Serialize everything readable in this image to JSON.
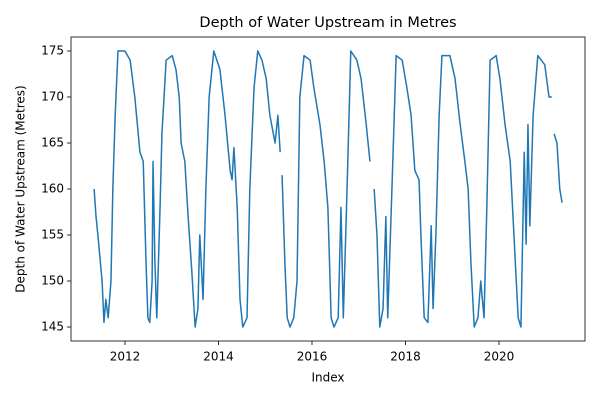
{
  "chart_data": {
    "type": "line",
    "title": "Depth of Water Upstream in Metres",
    "x_label": "Index",
    "y_label": "Depth of Water Upstream (Metres)",
    "color": "#1f77b4",
    "grid": false,
    "xlim": [
      2010.845,
      2021.84
    ],
    "ylim": [
      143.48,
      176.52
    ],
    "xticks": [
      2012,
      2014,
      2016,
      2018,
      2020
    ],
    "yticks": [
      145,
      150,
      155,
      160,
      165,
      170,
      175
    ],
    "x": [
      2011.34,
      2011.38,
      2011.42,
      2011.51,
      2011.55,
      2011.59,
      2011.64,
      2011.7,
      2011.74,
      2011.79,
      2011.85,
      2012.0,
      2012.11,
      2012.21,
      2012.32,
      2012.39,
      2012.45,
      2012.49,
      2012.53,
      2012.58,
      2012.6,
      2012.64,
      2012.68,
      2012.75,
      2012.79,
      2012.88,
      2013.01,
      2013.09,
      2013.16,
      2013.2,
      2013.28,
      2013.35,
      2013.43,
      2013.5,
      2013.56,
      2013.6,
      2013.67,
      2013.73,
      2013.8,
      2013.9,
      2014.03,
      2014.14,
      2014.25,
      2014.29,
      2014.33,
      2014.4,
      2014.46,
      2014.52,
      2014.61,
      2014.67,
      2014.76,
      2014.84,
      2014.93,
      2015.02,
      2015.1,
      2015.21,
      2015.27,
      2015.32,
      2015.34,
      2015.36,
      2015.42,
      2015.47,
      2015.53,
      2015.61,
      2015.68,
      2015.74,
      2015.83,
      2015.96,
      2016.04,
      2016.17,
      2016.26,
      2016.34,
      2016.41,
      2016.47,
      2016.56,
      2016.62,
      2016.67,
      2016.75,
      2016.83,
      2016.96,
      2017.05,
      2017.16,
      2017.24,
      2017.28,
      2017.33,
      2017.39,
      2017.45,
      2017.52,
      2017.58,
      2017.62,
      2017.71,
      2017.8,
      2017.93,
      2018.03,
      2018.12,
      2018.2,
      2018.29,
      2018.33,
      2018.4,
      2018.48,
      2018.55,
      2018.59,
      2018.65,
      2018.72,
      2018.78,
      2018.95,
      2019.06,
      2019.17,
      2019.27,
      2019.34,
      2019.4,
      2019.47,
      2019.55,
      2019.61,
      2019.68,
      2019.74,
      2019.81,
      2019.94,
      2020.02,
      2020.13,
      2020.24,
      2020.32,
      2020.41,
      2020.47,
      2020.54,
      2020.58,
      2020.62,
      2020.66,
      2020.73,
      2020.83,
      2020.98,
      2021.07,
      2021.13,
      2021.15,
      2021.18,
      2021.24,
      2021.3,
      2021.35
    ],
    "values": [
      160,
      157,
      155,
      150,
      145.5,
      148,
      146,
      150,
      160,
      168,
      175,
      175,
      174,
      170,
      164,
      163,
      152,
      146,
      145.5,
      150,
      163,
      152,
      146,
      158,
      166,
      174,
      174.5,
      173,
      170,
      165,
      163,
      157,
      151,
      145,
      147,
      155,
      148,
      160,
      170,
      175,
      173,
      168,
      162,
      161,
      164.5,
      158,
      148,
      145,
      146,
      160,
      171,
      175,
      174,
      172,
      168,
      165,
      168,
      164,
      null,
      161.5,
      152,
      146,
      145,
      146,
      150,
      170,
      174.5,
      174,
      171,
      167,
      163,
      158,
      146,
      145,
      146,
      158,
      146,
      160,
      175,
      174,
      172,
      167,
      163,
      null,
      160,
      155,
      145,
      147,
      157,
      146,
      160,
      174.5,
      174,
      171,
      168,
      162,
      161,
      155,
      146,
      145.5,
      156,
      147,
      155,
      168,
      174.5,
      174.5,
      172,
      167,
      163,
      160,
      152,
      145,
      146,
      150,
      146,
      158,
      174,
      174.5,
      172,
      167,
      163,
      155,
      146,
      145,
      164,
      154,
      167,
      156,
      168,
      174.5,
      173.5,
      170,
      170,
      null,
      166,
      165,
      160,
      158.5
    ]
  }
}
